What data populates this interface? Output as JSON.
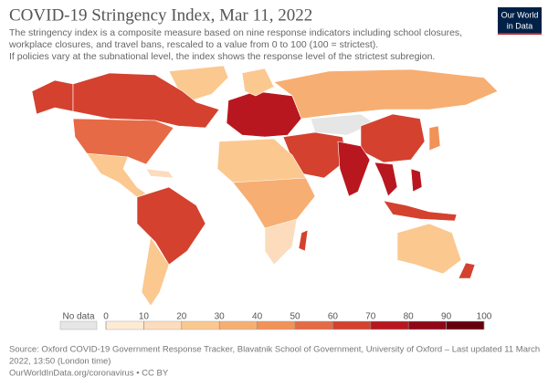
{
  "header": {
    "title": "COVID-19 Stringency Index, Mar 11, 2022",
    "subtitle": [
      "The stringency index is a composite measure based on nine response indicators including school closures,",
      "workplace closures, and travel bans, rescaled to a value from 0 to 100 (100 = strictest).",
      " If policies vary at the subnational level, the index shows the response level of the strictest subregion."
    ],
    "logo": [
      "Our World",
      "in Data"
    ]
  },
  "legend": {
    "no_data": "No data",
    "no_data_color": "#e6e6e6",
    "ticks": [
      0,
      10,
      20,
      30,
      40,
      50,
      60,
      70,
      80,
      90,
      100
    ],
    "colors": [
      "#fdebd6",
      "#fcdcbc",
      "#fbc890",
      "#f7ae72",
      "#f29258",
      "#e66a45",
      "#d4412f",
      "#b8171f",
      "#900818",
      "#67000d"
    ]
  },
  "footer": {
    "source": [
      "Source: Oxford COVID-19 Government Response Tracker, Blavatnik School of Government, University of Oxford – Last updated 11 March",
      "2022, 13:50 (London time)"
    ],
    "link": "OurWorldInData.org/coronavirus • CC BY"
  }
}
